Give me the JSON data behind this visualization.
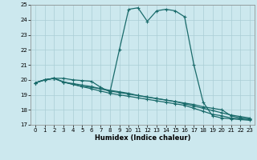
{
  "xlabel": "Humidex (Indice chaleur)",
  "bg_color": "#cce8ee",
  "grid_color": "#aacdd5",
  "line_color": "#1a6b6b",
  "xlim": [
    -0.5,
    23.5
  ],
  "ylim": [
    17,
    25
  ],
  "xticks": [
    0,
    1,
    2,
    3,
    4,
    5,
    6,
    7,
    8,
    9,
    10,
    11,
    12,
    13,
    14,
    15,
    16,
    17,
    18,
    19,
    20,
    21,
    22,
    23
  ],
  "yticks": [
    17,
    18,
    19,
    20,
    21,
    22,
    23,
    24,
    25
  ],
  "line1_x": [
    0,
    1,
    2,
    3,
    4,
    5,
    6,
    7,
    8,
    9,
    10,
    11,
    12,
    13,
    14,
    15,
    16,
    17,
    18,
    19,
    20,
    21,
    22,
    23
  ],
  "line1_y": [
    19.8,
    20.0,
    20.1,
    19.85,
    19.7,
    19.55,
    19.5,
    19.4,
    19.3,
    19.2,
    19.1,
    18.95,
    18.85,
    18.75,
    18.65,
    18.55,
    18.45,
    18.35,
    18.2,
    18.1,
    18.0,
    17.6,
    17.45,
    17.4
  ],
  "line2_x": [
    0,
    1,
    2,
    3,
    4,
    5,
    6,
    7,
    8,
    9,
    10,
    11,
    12,
    13,
    14,
    15,
    16,
    17,
    18,
    19,
    20,
    21,
    22,
    23
  ],
  "line2_y": [
    19.8,
    20.0,
    20.1,
    19.85,
    19.7,
    19.55,
    19.4,
    19.25,
    19.1,
    19.0,
    18.9,
    18.8,
    18.7,
    18.6,
    18.5,
    18.4,
    18.3,
    18.1,
    17.9,
    17.7,
    17.6,
    17.45,
    17.4,
    17.35
  ],
  "line3_x": [
    0,
    1,
    2,
    3,
    4,
    5,
    6,
    7,
    8,
    9,
    10,
    11,
    12,
    13,
    14,
    15,
    16,
    17,
    18,
    19,
    20,
    21,
    22,
    23
  ],
  "line3_y": [
    19.8,
    20.0,
    20.1,
    19.85,
    19.75,
    19.65,
    19.55,
    19.4,
    19.25,
    19.15,
    19.05,
    18.95,
    18.85,
    18.75,
    18.65,
    18.55,
    18.4,
    18.25,
    18.1,
    17.95,
    17.8,
    17.65,
    17.55,
    17.45
  ],
  "line4_x": [
    0,
    1,
    2,
    3,
    4,
    5,
    6,
    7,
    8,
    9,
    10,
    11,
    12,
    13,
    14,
    15,
    16,
    17,
    18,
    19,
    20,
    21,
    22,
    23
  ],
  "line4_y": [
    19.8,
    20.0,
    20.1,
    20.1,
    20.0,
    19.95,
    19.9,
    19.5,
    19.2,
    22.0,
    24.7,
    24.8,
    23.9,
    24.6,
    24.7,
    24.6,
    24.2,
    21.0,
    18.5,
    17.6,
    17.45,
    17.4,
    17.35,
    17.3
  ]
}
